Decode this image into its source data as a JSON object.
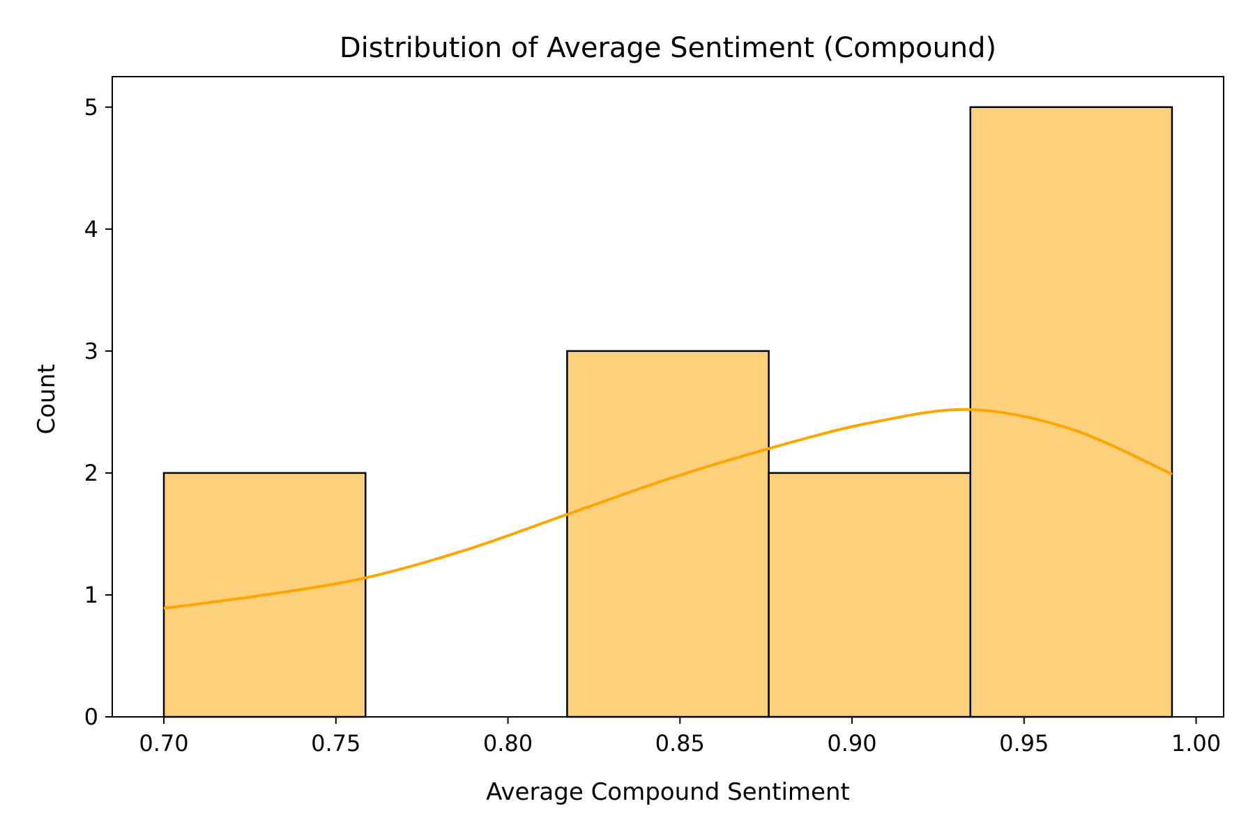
{
  "chart_data": {
    "type": "bar",
    "subtype": "histogram-with-kde",
    "title": "Distribution of Average Sentiment (Compound)",
    "xlabel": "Average Compound Sentiment",
    "ylabel": "Count",
    "xlim": [
      0.685,
      1.008
    ],
    "ylim": [
      0,
      5.25
    ],
    "x_ticks": [
      "0.70",
      "0.75",
      "0.80",
      "0.85",
      "0.90",
      "0.95",
      "1.00"
    ],
    "y_ticks": [
      "0",
      "1",
      "2",
      "3",
      "4",
      "5"
    ],
    "bins": [
      {
        "start": 0.7,
        "end": 0.7586,
        "count": 2
      },
      {
        "start": 0.7586,
        "end": 0.8172,
        "count": 0
      },
      {
        "start": 0.8172,
        "end": 0.8758,
        "count": 3
      },
      {
        "start": 0.8758,
        "end": 0.9344,
        "count": 2
      },
      {
        "start": 0.9344,
        "end": 0.993,
        "count": 5
      }
    ],
    "kde": {
      "x": [
        0.7,
        0.7293,
        0.7586,
        0.7879,
        0.8172,
        0.8465,
        0.8758,
        0.9051,
        0.9344,
        0.9637,
        0.993
      ],
      "y": [
        0.89,
        1.0,
        1.14,
        1.37,
        1.66,
        1.95,
        2.2,
        2.41,
        2.52,
        2.36,
        1.99
      ]
    },
    "bar_color": "#fdd07b",
    "bar_edge_color": "#000000",
    "kde_color": "#ffa500",
    "grid": false,
    "legend": "none"
  }
}
